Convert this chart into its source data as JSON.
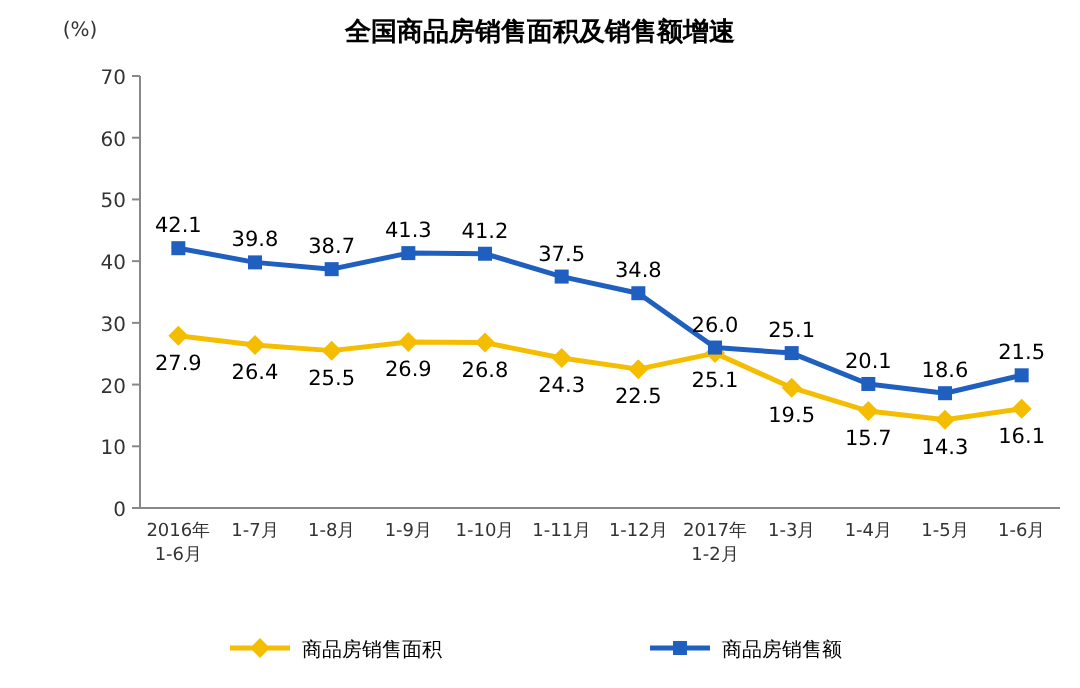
{
  "chart_data": {
    "type": "line",
    "title": "全国商品房销售面积及销售额增速",
    "ylabel": "(%)",
    "categories": [
      "2016年\n1-6月",
      "1-7月",
      "1-8月",
      "1-9月",
      "1-10月",
      "1-11月",
      "1-12月",
      "2017年\n1-2月",
      "1-3月",
      "1-4月",
      "1-5月",
      "1-6月"
    ],
    "series": [
      {
        "name": "商品房销售面积",
        "color": "#f5bd00",
        "marker": "diamond",
        "values": [
          27.9,
          26.4,
          25.5,
          26.9,
          26.8,
          24.3,
          22.5,
          25.1,
          19.5,
          15.7,
          14.3,
          16.1
        ],
        "value_labels": [
          "27.9",
          "26.4",
          "25.5",
          "26.9",
          "26.8",
          "24.3",
          "22.5",
          "25.1",
          "19.5",
          "15.7",
          "14.3",
          "16.1"
        ]
      },
      {
        "name": "商品房销售额",
        "color": "#1f5fbf",
        "marker": "square",
        "values": [
          42.1,
          39.8,
          38.7,
          41.3,
          41.2,
          37.5,
          34.8,
          26.0,
          25.1,
          20.1,
          18.6,
          21.5
        ],
        "value_labels": [
          "42.1",
          "39.8",
          "38.7",
          "41.3",
          "41.2",
          "37.5",
          "34.8",
          "26.0",
          "25.1",
          "20.1",
          "18.6",
          "21.5"
        ]
      }
    ],
    "ylim": [
      0,
      70
    ],
    "yticks": [
      0,
      10,
      20,
      30,
      40,
      50,
      60,
      70
    ],
    "legend": "bottom"
  }
}
